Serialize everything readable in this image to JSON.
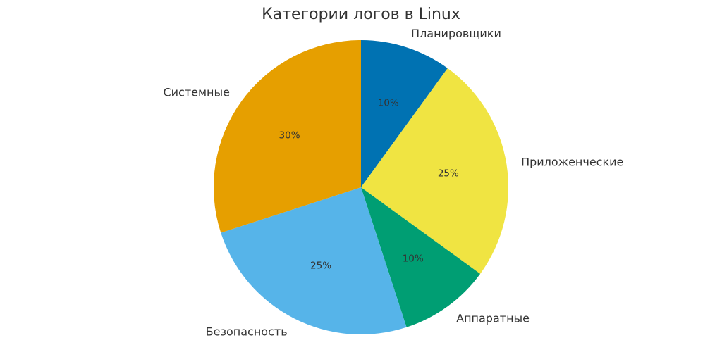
{
  "chart_data": {
    "type": "pie",
    "title": "Категории логов в Linux",
    "start_angle_deg": 90,
    "direction": "clockwise",
    "slices": [
      {
        "label": "Планировщики",
        "value": 10,
        "pct_label": "10%",
        "color": "#0072B2"
      },
      {
        "label": "Приложенческие",
        "value": 25,
        "pct_label": "25%",
        "color": "#F0E442"
      },
      {
        "label": "Аппаратные",
        "value": 10,
        "pct_label": "10%",
        "color": "#009E73"
      },
      {
        "label": "Безопасность",
        "value": 25,
        "pct_label": "25%",
        "color": "#56B4E9"
      },
      {
        "label": "Системные",
        "value": 30,
        "pct_label": "30%",
        "color": "#E69F00"
      }
    ]
  }
}
